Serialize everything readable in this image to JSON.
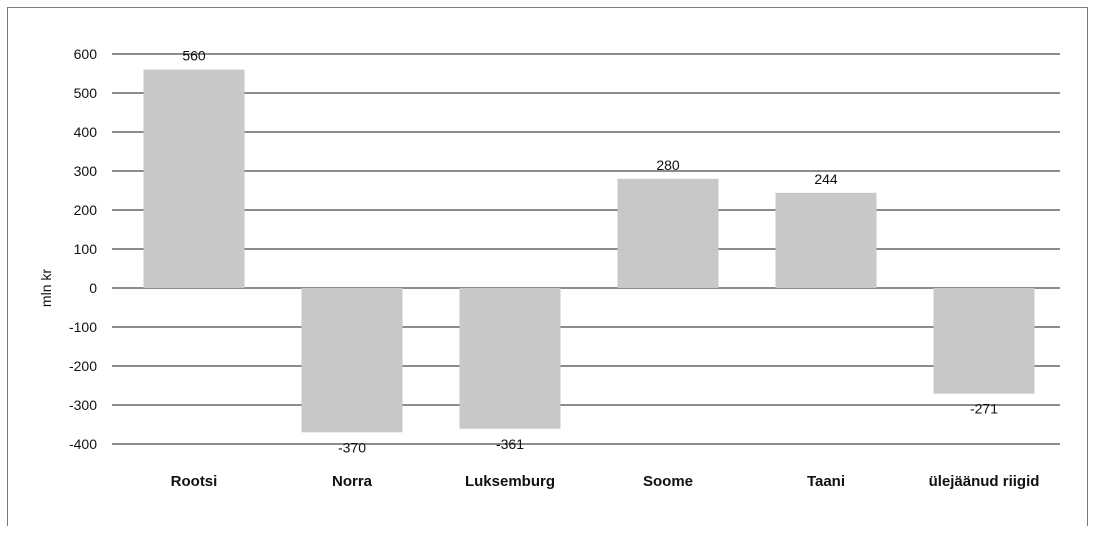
{
  "chart_data": {
    "type": "bar",
    "title": "",
    "xlabel": "",
    "ylabel": "mln kr",
    "ylim": [
      -400,
      600
    ],
    "yticks": [
      600,
      500,
      400,
      300,
      200,
      100,
      0,
      -100,
      -200,
      -300,
      -400
    ],
    "grid": true,
    "legend": "none",
    "categories": [
      "Rootsi",
      "Norra",
      "Luksemburg",
      "Soome",
      "Taani",
      "ülejäänud riigid"
    ],
    "values": [
      560,
      -370,
      -361,
      280,
      244,
      -271
    ],
    "data_labels": [
      "560",
      "-370",
      "-361",
      "280",
      "244",
      "-271"
    ],
    "colors": {
      "bar": "#c8c8c8",
      "grid": "#1a1a1a",
      "text": "#111111"
    }
  }
}
